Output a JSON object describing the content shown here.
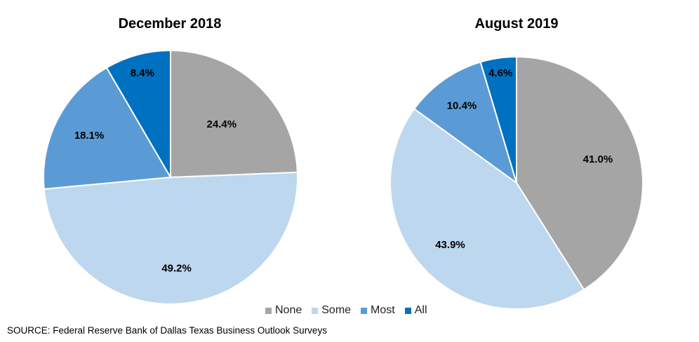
{
  "chart_data": [
    {
      "type": "pie",
      "title": "December 2018",
      "categories": [
        "None",
        "Some",
        "Most",
        "All"
      ],
      "values": [
        24.4,
        49.2,
        18.1,
        8.4
      ],
      "value_labels": [
        "24.4%",
        "49.2%",
        "18.1%",
        "8.4%"
      ],
      "start": "12 o'clock",
      "direction": "clockwise"
    },
    {
      "type": "pie",
      "title": "August 2019",
      "categories": [
        "None",
        "Some",
        "Most",
        "All"
      ],
      "values": [
        41.0,
        43.9,
        10.4,
        4.6
      ],
      "value_labels": [
        "41.0%",
        "43.9%",
        "10.4%",
        "4.6%"
      ],
      "start": "12 o'clock",
      "direction": "clockwise"
    }
  ],
  "legend": {
    "placement": "bottom",
    "items": [
      {
        "label": "None",
        "color": "#a5a5a5"
      },
      {
        "label": "Some",
        "color": "#bdd7ee"
      },
      {
        "label": "Most",
        "color": "#5b9bd5"
      },
      {
        "label": "All",
        "color": "#0070c0"
      }
    ]
  },
  "source": "SOURCE: Federal Reserve Bank of Dallas Texas Business Outlook Surveys"
}
